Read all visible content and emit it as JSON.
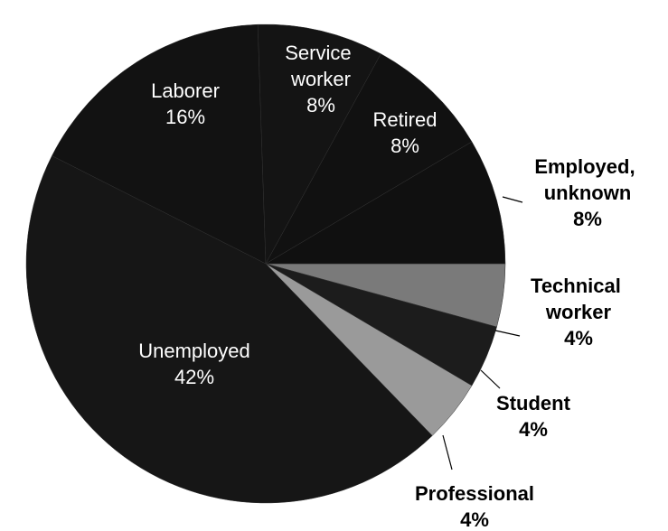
{
  "chart_data": {
    "type": "pie",
    "labels": [
      "Technical worker",
      "Student",
      "Professional",
      "Unemployed",
      "Laborer",
      "Service worker",
      "Retired",
      "Employed, unknown"
    ],
    "values": [
      4,
      4,
      4,
      42,
      16,
      8,
      8,
      8
    ],
    "value_labels": [
      "4%",
      "4%",
      "4%",
      "42%",
      "16%",
      "8%",
      "8%",
      "8%"
    ],
    "colors": [
      "#7a7a7a",
      "#1c1c1c",
      "#9a9a9a",
      "#161616",
      "#121212",
      "#141414",
      "#111111",
      "#101010"
    ]
  }
}
